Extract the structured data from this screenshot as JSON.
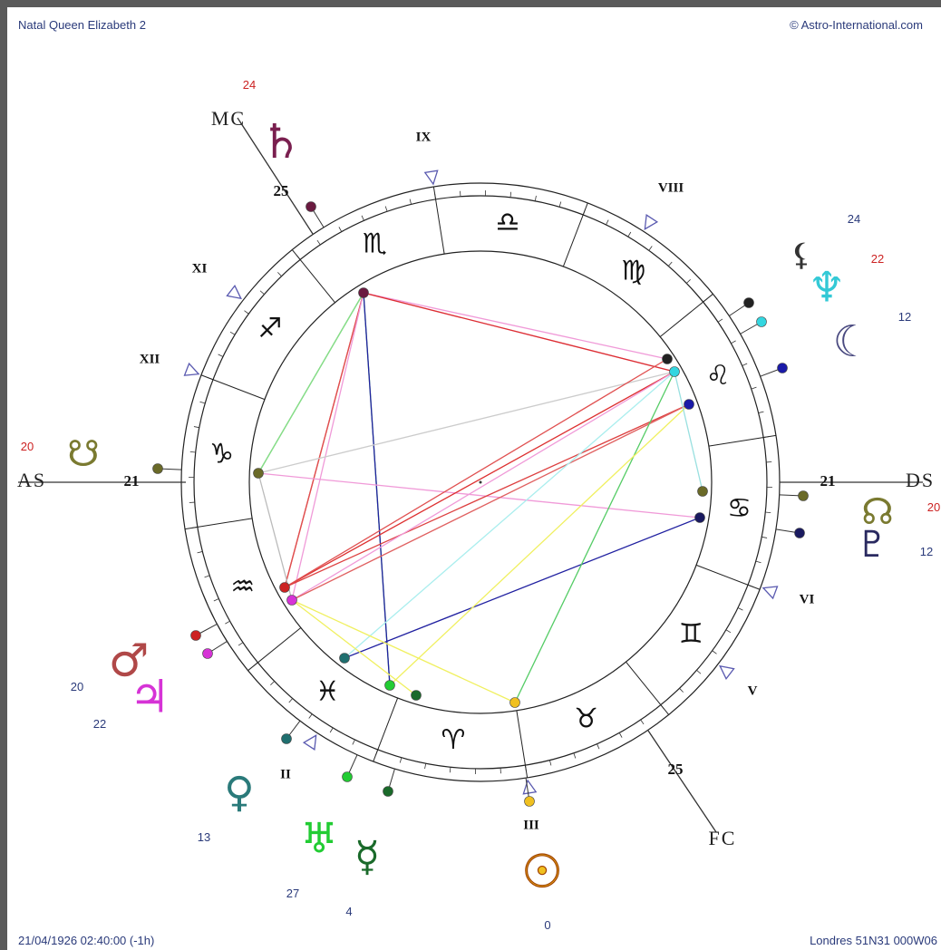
{
  "header": {
    "title": "Natal Queen Elizabeth 2",
    "copyright": "© Astro-International.com"
  },
  "footer": {
    "datetime": "21/04/1926 02:40:00 (-1h)",
    "location": "Londres 51N31 000W06"
  },
  "angles": [
    {
      "label": "AS",
      "degree": 21
    },
    {
      "label": "DS",
      "degree": 21
    },
    {
      "label": "MC",
      "degree": 25
    },
    {
      "label": "FC",
      "degree": 25
    }
  ],
  "houses": [
    "IX",
    "VIII",
    "XI",
    "XII",
    "VI",
    "V",
    "II",
    "III"
  ],
  "signs": [
    "♈",
    "♉",
    "♊",
    "♋",
    "♌",
    "♍",
    "♎",
    "♏",
    "♐",
    "♑",
    "♒",
    "♓"
  ],
  "planets": [
    {
      "glyph": "♄",
      "degree": 24
    },
    {
      "glyph": "⚸",
      "degree": 24
    },
    {
      "glyph": "♆",
      "degree": 22
    },
    {
      "glyph": "☾",
      "degree": 12
    },
    {
      "glyph": "☋",
      "degree": 20
    },
    {
      "glyph": "☊",
      "degree": 20
    },
    {
      "glyph": "♇",
      "degree": 12
    },
    {
      "glyph": "♂",
      "degree": 20
    },
    {
      "glyph": "♃",
      "degree": 22
    },
    {
      "glyph": "♀",
      "degree": 13
    },
    {
      "glyph": "♅",
      "degree": 27
    },
    {
      "glyph": "☿",
      "degree": 4
    },
    {
      "glyph": "☉",
      "degree": 0
    }
  ]
}
